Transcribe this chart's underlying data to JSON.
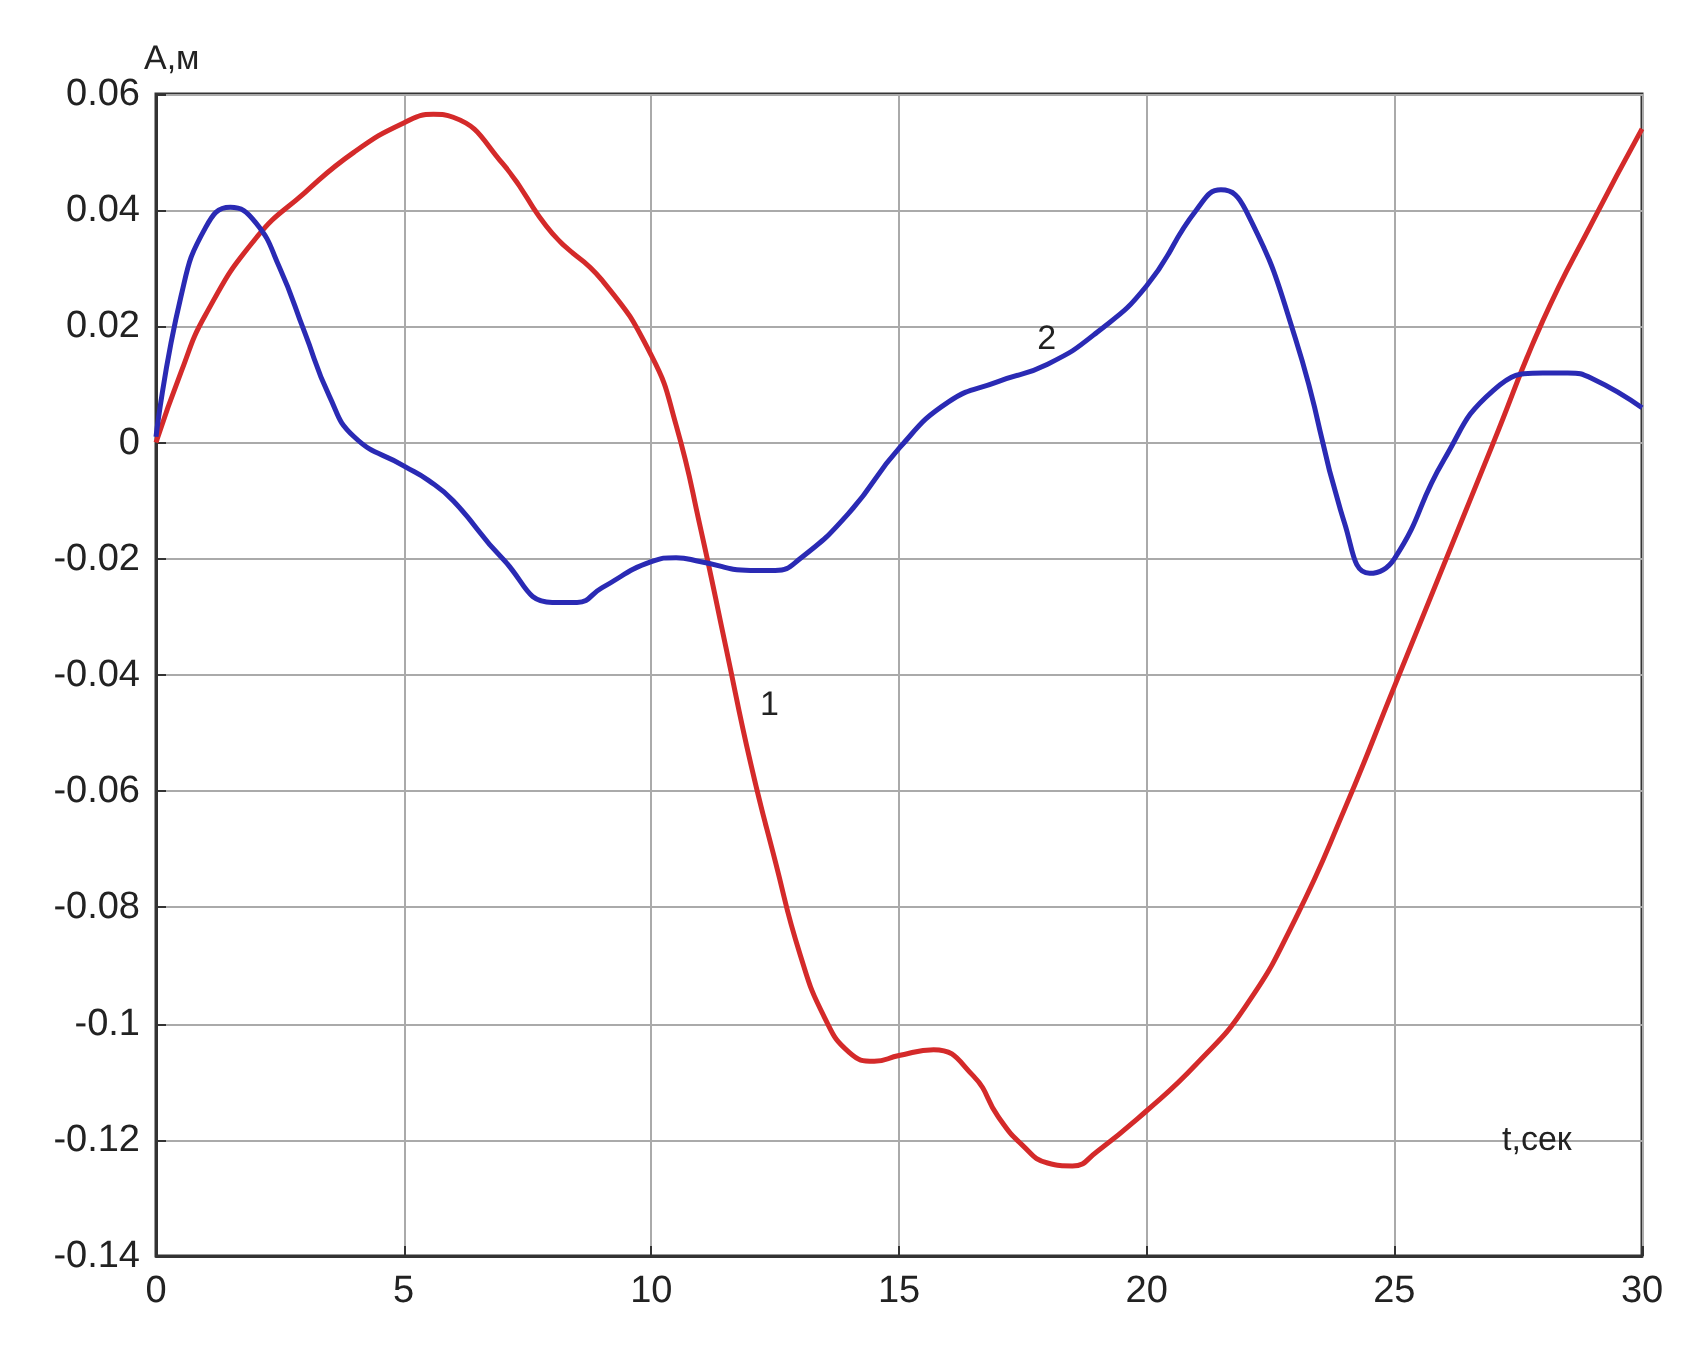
{
  "chart_data": {
    "type": "line",
    "xlabel": "t,сек",
    "ylabel": "А,м",
    "xlim": [
      0,
      30
    ],
    "xticks": [
      0,
      5,
      10,
      15,
      20,
      25,
      30
    ],
    "ylim": [
      -0.14,
      0.06
    ],
    "yticks": [
      -0.14,
      -0.12,
      -0.1,
      -0.08,
      -0.06,
      -0.04,
      -0.02,
      0,
      0.02,
      0.04,
      0.06
    ],
    "grid": true,
    "marker": "none",
    "line_style": "solid",
    "annotations": [
      {
        "text": "1",
        "x": 11.9,
        "y": -0.051
      },
      {
        "text": "2",
        "x": 17.5,
        "y": 0.012
      }
    ],
    "series": [
      {
        "color": "#d42a2a",
        "x": [
          0,
          0.5,
          1,
          2,
          3,
          4,
          5,
          5.6,
          6,
          7,
          8,
          9,
          10,
          10.5,
          11,
          11.5,
          12,
          12.5,
          13,
          13.5,
          14,
          14.5,
          15,
          15.7,
          16.5,
          17,
          17.5,
          18,
          18.5,
          19,
          20,
          21,
          22,
          23,
          24,
          25,
          26,
          27,
          28,
          29,
          30
        ],
        "values": [
          0,
          0.012,
          0.022,
          0.035,
          0.043,
          0.05,
          0.055,
          0.0565,
          0.056,
          0.048,
          0.036,
          0.028,
          0.015,
          0.003,
          -0.015,
          -0.035,
          -0.055,
          -0.072,
          -0.088,
          -0.099,
          -0.105,
          -0.1065,
          -0.1055,
          -0.1045,
          -0.109,
          -0.116,
          -0.121,
          -0.124,
          -0.1245,
          -0.122,
          -0.115,
          -0.107,
          -0.097,
          -0.082,
          -0.063,
          -0.042,
          -0.021,
          0,
          0.021,
          0.038,
          0.054
        ]
      },
      {
        "color": "#2a2ab4",
        "x": [
          0,
          0.5,
          1,
          1.5,
          2,
          2.5,
          3,
          3.5,
          4,
          5,
          5.5,
          6,
          7,
          8,
          8.5,
          9,
          10,
          10.5,
          11,
          12,
          12.5,
          13,
          14,
          15,
          16,
          17,
          18,
          19,
          20,
          21,
          21.5,
          22,
          23,
          24,
          24.5,
          25,
          26,
          27,
          28,
          28.5,
          29,
          30
        ],
        "values": [
          0.001,
          0.025,
          0.037,
          0.0405,
          0.038,
          0.03,
          0.019,
          0.008,
          0.001,
          -0.004,
          -0.0065,
          -0.01,
          -0.02,
          -0.0275,
          -0.0275,
          -0.025,
          -0.0205,
          -0.0198,
          -0.0205,
          -0.022,
          -0.022,
          -0.02,
          -0.012,
          -0.001,
          0.007,
          0.0105,
          0.0135,
          0.019,
          0.027,
          0.04,
          0.0435,
          0.04,
          0.018,
          -0.014,
          -0.0225,
          -0.02,
          -0.003,
          0.009,
          0.012,
          0.012,
          0.011,
          0.006
        ]
      }
    ]
  }
}
